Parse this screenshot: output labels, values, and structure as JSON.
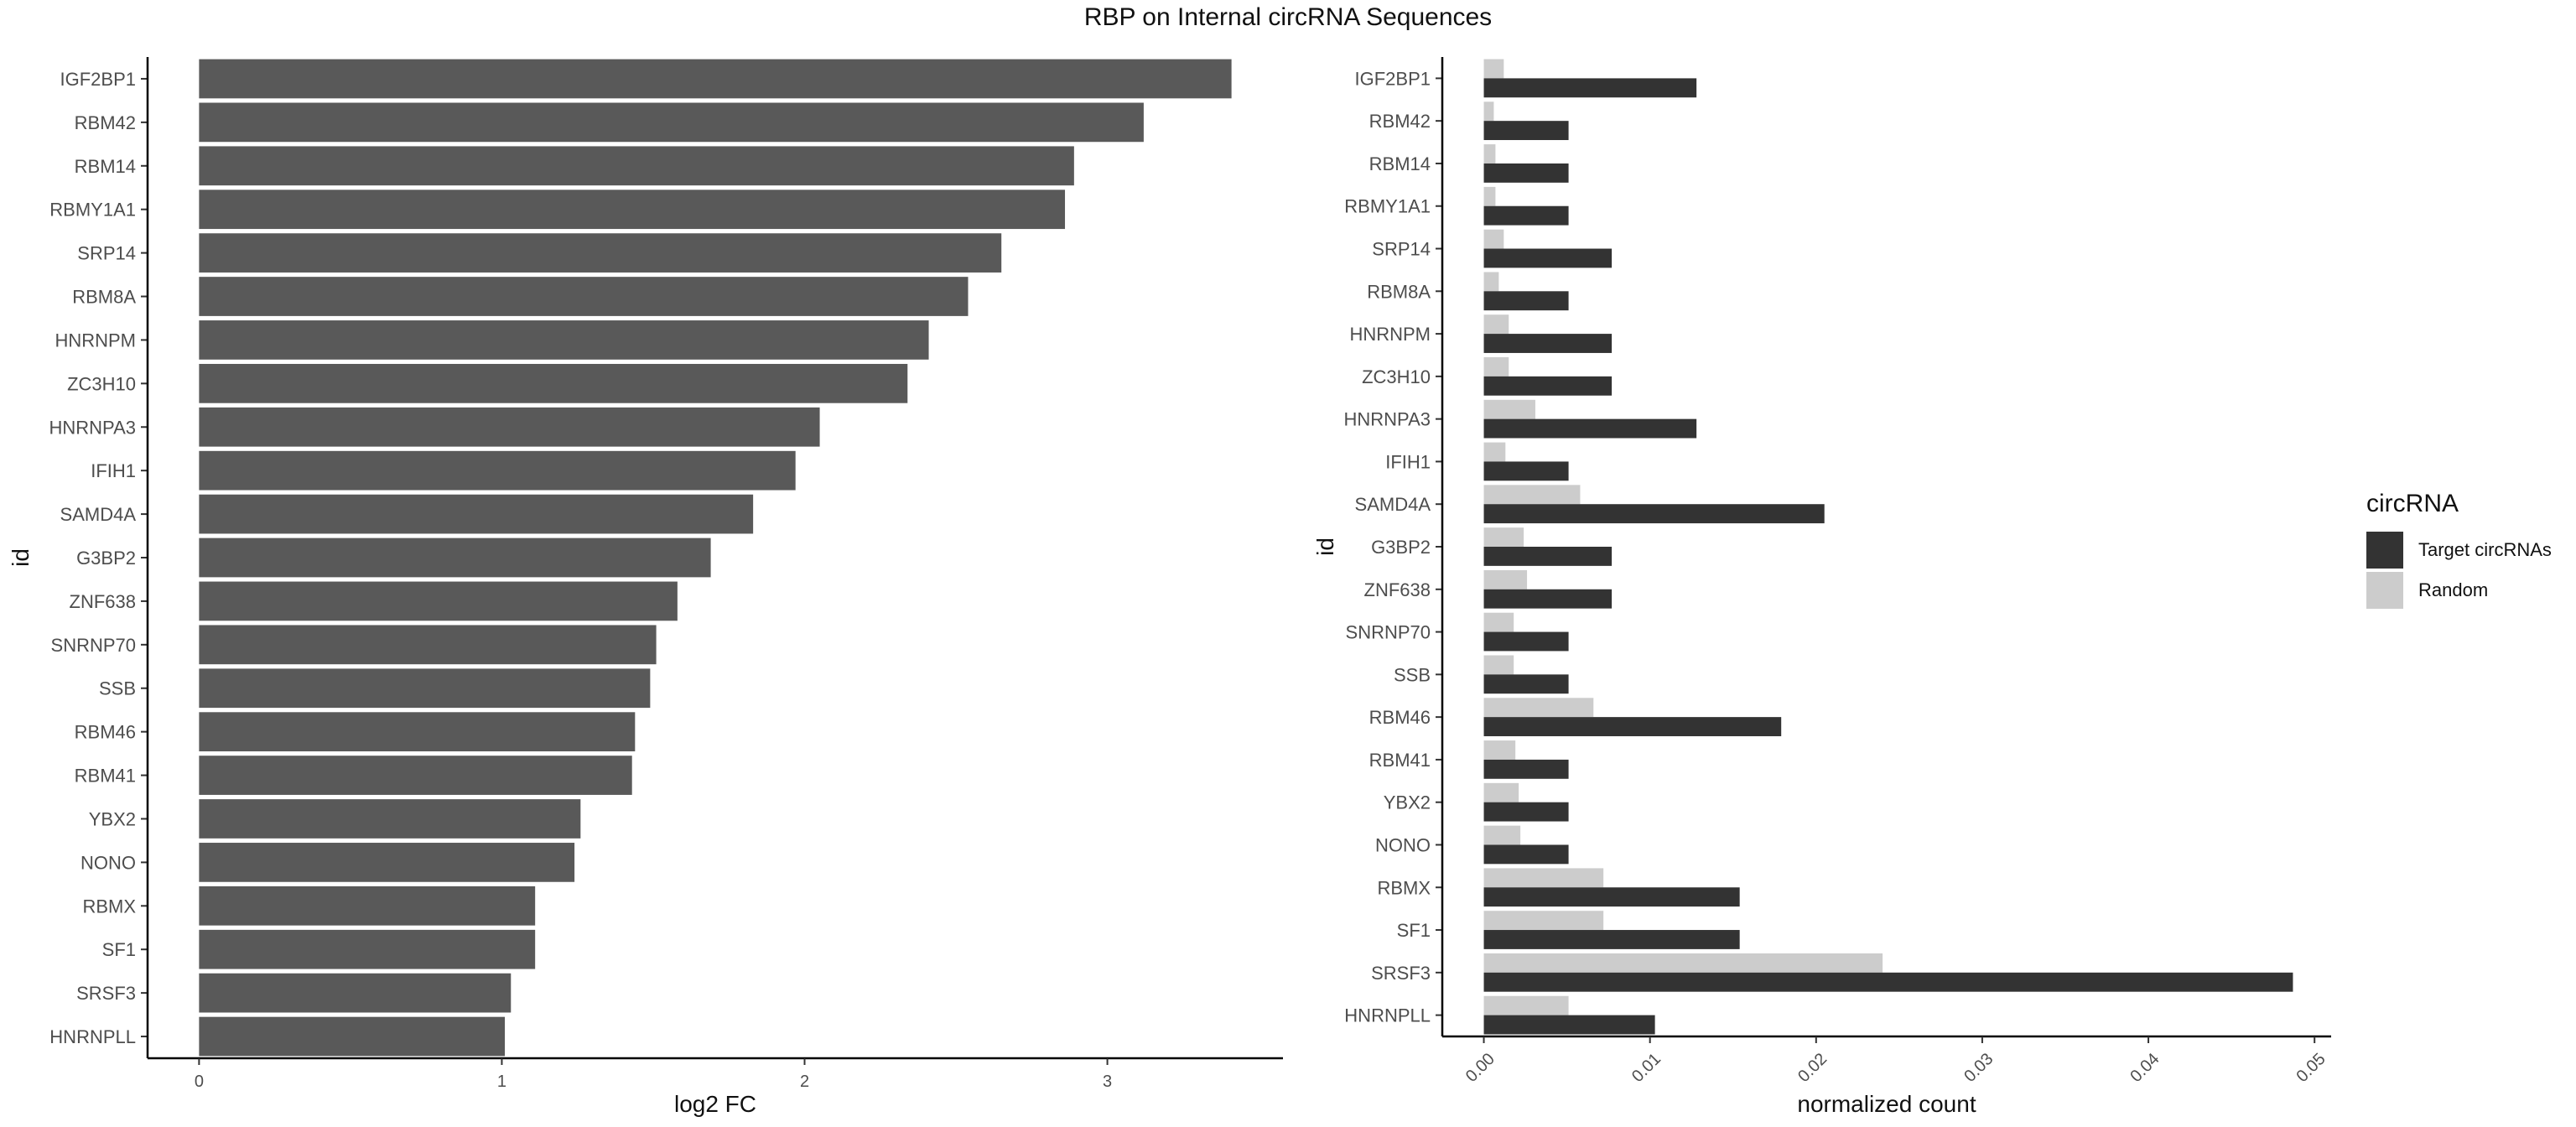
{
  "figure_title": "RBP on Internal circRNA Sequences",
  "colors": {
    "bar_left": "#595959",
    "target": "#333333",
    "random": "#cccccc",
    "axis": "#000000",
    "text": "#4d4d4d"
  },
  "legend": {
    "title": "circRNA",
    "items": [
      {
        "label": "Target circRNAs",
        "color": "#333333"
      },
      {
        "label": "Random",
        "color": "#cccccc"
      }
    ]
  },
  "chart_data": [
    {
      "type": "bar",
      "orientation": "horizontal",
      "title": "",
      "xlabel": "log2 FC",
      "ylabel": "id",
      "xlim": [
        -0.17,
        3.58
      ],
      "xticks": [
        "0",
        "1",
        "2",
        "3"
      ],
      "categories": [
        "IGF2BP1",
        "RBM42",
        "RBM14",
        "RBMY1A1",
        "SRP14",
        "RBM8A",
        "HNRNPM",
        "ZC3H10",
        "HNRNPA3",
        "IFIH1",
        "SAMD4A",
        "G3BP2",
        "ZNF638",
        "SNRNP70",
        "SSB",
        "RBM46",
        "RBM41",
        "YBX2",
        "NONO",
        "RBMX",
        "SF1",
        "SRSF3",
        "HNRNPLL"
      ],
      "values": [
        3.41,
        3.12,
        2.89,
        2.86,
        2.65,
        2.54,
        2.41,
        2.34,
        2.05,
        1.97,
        1.83,
        1.69,
        1.58,
        1.51,
        1.49,
        1.44,
        1.43,
        1.26,
        1.24,
        1.11,
        1.11,
        1.03,
        1.01
      ],
      "grid": false
    },
    {
      "type": "bar",
      "orientation": "horizontal",
      "grouped": true,
      "title": "",
      "xlabel": "normalized count",
      "ylabel": "id",
      "xlim": [
        -0.0025,
        0.051
      ],
      "xticks": [
        "0.00",
        "0.01",
        "0.02",
        "0.03",
        "0.04",
        "0.05"
      ],
      "categories": [
        "IGF2BP1",
        "RBM42",
        "RBM14",
        "RBMY1A1",
        "SRP14",
        "RBM8A",
        "HNRNPM",
        "ZC3H10",
        "HNRNPA3",
        "IFIH1",
        "SAMD4A",
        "G3BP2",
        "ZNF638",
        "SNRNP70",
        "SSB",
        "RBM46",
        "RBM41",
        "YBX2",
        "NONO",
        "RBMX",
        "SF1",
        "SRSF3",
        "HNRNPLL"
      ],
      "series": [
        {
          "name": "Target circRNAs",
          "values": [
            0.0128,
            0.0051,
            0.0051,
            0.0051,
            0.0077,
            0.0051,
            0.0077,
            0.0077,
            0.0128,
            0.0051,
            0.0205,
            0.0077,
            0.0077,
            0.0051,
            0.0051,
            0.0179,
            0.0051,
            0.0051,
            0.0051,
            0.0154,
            0.0154,
            0.0487,
            0.0103
          ]
        },
        {
          "name": "Random",
          "values": [
            0.0012,
            0.0006,
            0.0007,
            0.0007,
            0.0012,
            0.0009,
            0.0015,
            0.0015,
            0.0031,
            0.0013,
            0.0058,
            0.0024,
            0.0026,
            0.0018,
            0.0018,
            0.0066,
            0.0019,
            0.0021,
            0.0022,
            0.0072,
            0.0072,
            0.024,
            0.0051
          ]
        }
      ],
      "grid": false,
      "legend_position": "right"
    }
  ]
}
